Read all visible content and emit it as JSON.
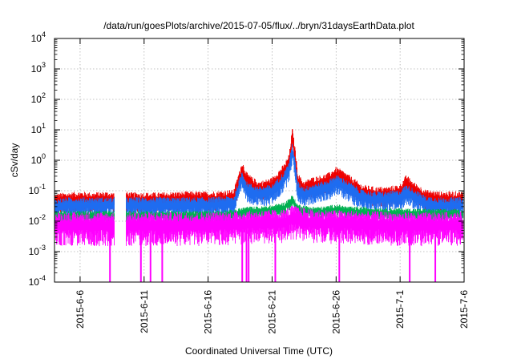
{
  "chart_data": {
    "type": "line",
    "title": "/data/run/goesPlots/archive/2015-07-05/flux/../bryn/31daysEarthData.plot",
    "xlabel": "Coordinated Universal Time (UTC)",
    "ylabel": "cSv/day",
    "yscale": "log",
    "ylim": [
      0.0001,
      10000
    ],
    "xlim": [
      "2015-06-04",
      "2015-07-06"
    ],
    "grid": true,
    "legend": "none",
    "x_ticks": [
      "2015-6-6",
      "2015-6-11",
      "2015-6-16",
      "2015-6-21",
      "2015-6-26",
      "2015-7-1",
      "2015-7-6"
    ],
    "y_ticks": [
      {
        "base": "10",
        "exp": "-4",
        "value": 0.0001
      },
      {
        "base": "10",
        "exp": "-3",
        "value": 0.001
      },
      {
        "base": "10",
        "exp": "-2",
        "value": 0.01
      },
      {
        "base": "10",
        "exp": "-1",
        "value": 0.1
      },
      {
        "base": "10",
        "exp": "0",
        "value": 1
      },
      {
        "base": "10",
        "exp": "1",
        "value": 10
      },
      {
        "base": "10",
        "exp": "2",
        "value": 100
      },
      {
        "base": "10",
        "exp": "3",
        "value": 1000
      },
      {
        "base": "10",
        "exp": "4",
        "value": 10000
      }
    ],
    "data_gaps": [
      [
        "2015-06-08T16:00",
        "2015-06-09T14:00"
      ]
    ],
    "series": [
      {
        "color": "#ee0000",
        "x": [
          "2015-06-04",
          "2015-06-05",
          "2015-06-06",
          "2015-06-07",
          "2015-06-08",
          "2015-06-08T16:00",
          "2015-06-09T14:00",
          "2015-06-10",
          "2015-06-12",
          "2015-06-14",
          "2015-06-16",
          "2015-06-18",
          "2015-06-18T16:00",
          "2015-06-19",
          "2015-06-19T12:00",
          "2015-06-20",
          "2015-06-21",
          "2015-06-21T12:00",
          "2015-06-22",
          "2015-06-22T08:00",
          "2015-06-22T14:00",
          "2015-06-22T20:00",
          "2015-06-23",
          "2015-06-23T06:00",
          "2015-06-23T12:00",
          "2015-06-24",
          "2015-06-25",
          "2015-06-25T12:00",
          "2015-06-26",
          "2015-06-26T12:00",
          "2015-06-27",
          "2015-06-28",
          "2015-06-29",
          "2015-06-30",
          "2015-07-01",
          "2015-07-01T12:00",
          "2015-07-02",
          "2015-07-03",
          "2015-07-04",
          "2015-07-05",
          "2015-07-06"
        ],
        "values": [
          0.06,
          0.065,
          0.07,
          0.065,
          0.07,
          0.065,
          0.07,
          0.065,
          0.065,
          0.07,
          0.07,
          0.08,
          0.7,
          0.3,
          0.2,
          0.15,
          0.2,
          0.35,
          0.6,
          1.2,
          9,
          1.5,
          0.3,
          0.2,
          0.15,
          0.2,
          0.25,
          0.3,
          0.45,
          0.35,
          0.25,
          0.12,
          0.1,
          0.1,
          0.12,
          0.25,
          0.15,
          0.08,
          0.07,
          0.07,
          0.07
        ]
      },
      {
        "color": "#1e6cf0",
        "x": [
          "2015-06-04",
          "2015-06-05",
          "2015-06-06",
          "2015-06-07",
          "2015-06-08",
          "2015-06-08T16:00",
          "2015-06-09T14:00",
          "2015-06-10",
          "2015-06-12",
          "2015-06-14",
          "2015-06-16",
          "2015-06-18",
          "2015-06-18T16:00",
          "2015-06-19",
          "2015-06-19T12:00",
          "2015-06-20",
          "2015-06-21",
          "2015-06-21T12:00",
          "2015-06-22",
          "2015-06-22T08:00",
          "2015-06-22T14:00",
          "2015-06-22T20:00",
          "2015-06-23",
          "2015-06-23T06:00",
          "2015-06-23T12:00",
          "2015-06-24",
          "2015-06-25",
          "2015-06-25T12:00",
          "2015-06-26",
          "2015-06-26T12:00",
          "2015-06-27",
          "2015-06-28",
          "2015-06-29",
          "2015-06-30",
          "2015-07-01",
          "2015-07-01T12:00",
          "2015-07-02",
          "2015-07-03",
          "2015-07-04",
          "2015-07-05",
          "2015-07-06"
        ],
        "values": [
          0.04,
          0.045,
          0.045,
          0.045,
          0.045,
          0.045,
          0.045,
          0.045,
          0.045,
          0.045,
          0.045,
          0.05,
          0.35,
          0.15,
          0.12,
          0.1,
          0.12,
          0.2,
          0.35,
          0.7,
          3,
          0.6,
          0.15,
          0.12,
          0.1,
          0.12,
          0.15,
          0.18,
          0.25,
          0.2,
          0.15,
          0.08,
          0.07,
          0.07,
          0.08,
          0.12,
          0.09,
          0.05,
          0.045,
          0.045,
          0.045
        ]
      },
      {
        "color": "#00b050",
        "x": [
          "2015-06-04",
          "2015-06-08",
          "2015-06-08T16:00",
          "2015-06-09T14:00",
          "2015-06-16",
          "2015-06-18",
          "2015-06-19",
          "2015-06-20",
          "2015-06-21",
          "2015-06-22",
          "2015-06-22T14:00",
          "2015-06-23",
          "2015-06-24",
          "2015-06-25",
          "2015-06-26",
          "2015-06-27",
          "2015-07-01",
          "2015-07-06"
        ],
        "values": [
          0.018,
          0.018,
          0.018,
          0.018,
          0.018,
          0.02,
          0.025,
          0.025,
          0.028,
          0.035,
          0.06,
          0.03,
          0.025,
          0.025,
          0.03,
          0.025,
          0.022,
          0.02
        ]
      },
      {
        "color": "#ff00ff",
        "x": [
          "2015-06-04",
          "2015-06-08",
          "2015-06-08T16:00",
          "2015-06-09T14:00",
          "2015-06-16",
          "2015-06-22",
          "2015-06-22T14:00",
          "2015-06-24",
          "2015-07-01",
          "2015-07-06"
        ],
        "values": [
          0.012,
          0.012,
          0.012,
          0.012,
          0.012,
          0.015,
          0.02,
          0.015,
          0.012,
          0.012
        ],
        "dropouts": [
          "2015-06-08T08:00",
          "2015-06-10T18:00",
          "2015-06-11T12:00",
          "2015-06-12T10:00",
          "2015-06-18T16:00",
          "2015-06-19T00:00",
          "2015-06-19T04:00",
          "2015-06-21T06:00",
          "2015-06-26T06:00",
          "2015-07-01T18:00",
          "2015-07-03T18:00"
        ]
      }
    ]
  }
}
